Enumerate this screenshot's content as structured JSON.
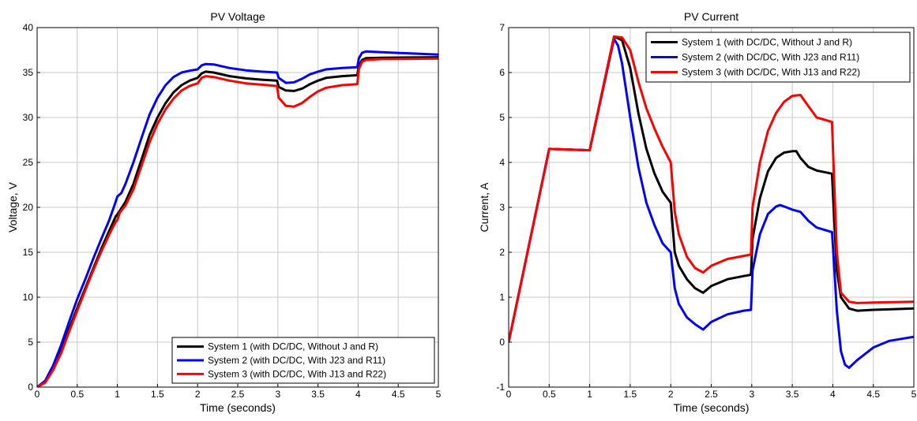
{
  "chart_data": [
    {
      "type": "line",
      "title": "PV Voltage",
      "xlabel": "Time (seconds)",
      "ylabel": "Voltage, V",
      "xlim": [
        0,
        5
      ],
      "ylim": [
        0,
        40
      ],
      "xticks": [
        "0",
        "0.5",
        "1",
        "1.5",
        "2",
        "2.5",
        "3",
        "3.5",
        "4",
        "4.5",
        "5"
      ],
      "yticks": [
        "0",
        "5",
        "10",
        "15",
        "20",
        "25",
        "30",
        "35",
        "40"
      ],
      "grid": true,
      "legend_position": "bottom-right",
      "series": [
        {
          "name": "System 1 (with DC/DC, Without J and R)",
          "color": "#000000",
          "points": [
            [
              0,
              0
            ],
            [
              0.1,
              0.6
            ],
            [
              0.2,
              2.0
            ],
            [
              0.3,
              4.0
            ],
            [
              0.4,
              6.5
            ],
            [
              0.5,
              8.8
            ],
            [
              0.6,
              11.0
            ],
            [
              0.7,
              13.2
            ],
            [
              0.8,
              15.4
            ],
            [
              0.9,
              17.4
            ],
            [
              0.98,
              19.0
            ],
            [
              1.0,
              19.2
            ],
            [
              1.1,
              20.6
            ],
            [
              1.2,
              22.6
            ],
            [
              1.3,
              25.3
            ],
            [
              1.4,
              28.0
            ],
            [
              1.5,
              30.0
            ],
            [
              1.6,
              31.6
            ],
            [
              1.7,
              32.8
            ],
            [
              1.8,
              33.6
            ],
            [
              1.9,
              34.1
            ],
            [
              2.0,
              34.4
            ],
            [
              2.05,
              34.9
            ],
            [
              2.1,
              35.1
            ],
            [
              2.2,
              35.0
            ],
            [
              2.4,
              34.6
            ],
            [
              2.6,
              34.35
            ],
            [
              2.8,
              34.2
            ],
            [
              2.99,
              34.1
            ],
            [
              3.01,
              33.4
            ],
            [
              3.1,
              33.0
            ],
            [
              3.2,
              32.95
            ],
            [
              3.3,
              33.2
            ],
            [
              3.4,
              33.7
            ],
            [
              3.5,
              34.1
            ],
            [
              3.6,
              34.4
            ],
            [
              3.8,
              34.6
            ],
            [
              3.99,
              34.7
            ],
            [
              4.01,
              35.8
            ],
            [
              4.05,
              36.4
            ],
            [
              4.1,
              36.6
            ],
            [
              4.3,
              36.65
            ],
            [
              5,
              36.7
            ]
          ]
        },
        {
          "name": "System 2 (with DC/DC, With J23 and R11)",
          "color": "#0000ff",
          "points": [
            [
              0,
              0
            ],
            [
              0.1,
              0.7
            ],
            [
              0.2,
              2.4
            ],
            [
              0.3,
              4.7
            ],
            [
              0.4,
              7.3
            ],
            [
              0.5,
              9.8
            ],
            [
              0.6,
              12.0
            ],
            [
              0.7,
              14.3
            ],
            [
              0.8,
              16.5
            ],
            [
              0.9,
              18.6
            ],
            [
              0.97,
              20.4
            ],
            [
              1.0,
              21.2
            ],
            [
              1.05,
              21.6
            ],
            [
              1.1,
              22.6
            ],
            [
              1.2,
              25.0
            ],
            [
              1.3,
              27.7
            ],
            [
              1.4,
              30.3
            ],
            [
              1.5,
              32.2
            ],
            [
              1.6,
              33.6
            ],
            [
              1.7,
              34.5
            ],
            [
              1.8,
              35.0
            ],
            [
              1.9,
              35.2
            ],
            [
              2.0,
              35.35
            ],
            [
              2.05,
              35.8
            ],
            [
              2.1,
              35.95
            ],
            [
              2.2,
              35.9
            ],
            [
              2.4,
              35.5
            ],
            [
              2.6,
              35.25
            ],
            [
              2.8,
              35.1
            ],
            [
              2.99,
              35.0
            ],
            [
              3.01,
              34.4
            ],
            [
              3.1,
              33.85
            ],
            [
              3.2,
              33.9
            ],
            [
              3.3,
              34.3
            ],
            [
              3.4,
              34.8
            ],
            [
              3.5,
              35.1
            ],
            [
              3.6,
              35.35
            ],
            [
              3.8,
              35.5
            ],
            [
              3.99,
              35.6
            ],
            [
              4.01,
              36.6
            ],
            [
              4.05,
              37.2
            ],
            [
              4.1,
              37.35
            ],
            [
              4.3,
              37.25
            ],
            [
              5,
              37.0
            ]
          ]
        },
        {
          "name": "System 3 (with DC/DC, With J13 and R22)",
          "color": "#ff0000",
          "points": [
            [
              0,
              0
            ],
            [
              0.1,
              0.5
            ],
            [
              0.2,
              1.9
            ],
            [
              0.3,
              3.8
            ],
            [
              0.4,
              6.2
            ],
            [
              0.5,
              8.5
            ],
            [
              0.6,
              10.8
            ],
            [
              0.7,
              13.0
            ],
            [
              0.8,
              15.1
            ],
            [
              0.9,
              17.0
            ],
            [
              0.98,
              18.4
            ],
            [
              1.0,
              18.6
            ],
            [
              1.03,
              19.4
            ],
            [
              1.1,
              20.2
            ],
            [
              1.2,
              22.0
            ],
            [
              1.3,
              24.6
            ],
            [
              1.4,
              27.2
            ],
            [
              1.5,
              29.3
            ],
            [
              1.6,
              30.9
            ],
            [
              1.7,
              32.1
            ],
            [
              1.8,
              33.0
            ],
            [
              1.9,
              33.5
            ],
            [
              2.0,
              33.8
            ],
            [
              2.05,
              34.4
            ],
            [
              2.1,
              34.6
            ],
            [
              2.2,
              34.5
            ],
            [
              2.4,
              34.1
            ],
            [
              2.6,
              33.8
            ],
            [
              2.8,
              33.65
            ],
            [
              2.99,
              33.5
            ],
            [
              3.01,
              32.2
            ],
            [
              3.1,
              31.3
            ],
            [
              3.2,
              31.2
            ],
            [
              3.3,
              31.6
            ],
            [
              3.4,
              32.3
            ],
            [
              3.5,
              32.9
            ],
            [
              3.6,
              33.3
            ],
            [
              3.8,
              33.6
            ],
            [
              3.99,
              33.7
            ],
            [
              4.01,
              35.4
            ],
            [
              4.05,
              36.2
            ],
            [
              4.1,
              36.4
            ],
            [
              4.3,
              36.5
            ],
            [
              5,
              36.55
            ]
          ]
        }
      ]
    },
    {
      "type": "line",
      "title": "PV Current",
      "xlabel": "Time (seconds)",
      "ylabel": "Current, A",
      "xlim": [
        0,
        5
      ],
      "ylim": [
        -1,
        7
      ],
      "xticks": [
        "0",
        "0.5",
        "1",
        "1.5",
        "2",
        "2.5",
        "3",
        "3.5",
        "4",
        "4.5",
        "5"
      ],
      "yticks": [
        "-1",
        "0",
        "1",
        "2",
        "3",
        "4",
        "5",
        "6",
        "7"
      ],
      "grid": true,
      "legend_position": "top-right",
      "series": [
        {
          "name": "System 1 (with DC/DC, Without J and R)",
          "color": "#000000",
          "points": [
            [
              0,
              0
            ],
            [
              0.5,
              4.3
            ],
            [
              1.0,
              4.27
            ],
            [
              1.3,
              6.8
            ],
            [
              1.4,
              6.72
            ],
            [
              1.5,
              6.1
            ],
            [
              1.6,
              5.1
            ],
            [
              1.7,
              4.3
            ],
            [
              1.8,
              3.75
            ],
            [
              1.9,
              3.35
            ],
            [
              2.0,
              3.1
            ],
            [
              2.05,
              2.0
            ],
            [
              2.1,
              1.7
            ],
            [
              2.2,
              1.4
            ],
            [
              2.3,
              1.2
            ],
            [
              2.4,
              1.1
            ],
            [
              2.5,
              1.25
            ],
            [
              2.7,
              1.4
            ],
            [
              2.9,
              1.47
            ],
            [
              2.99,
              1.5
            ],
            [
              3.01,
              2.3
            ],
            [
              3.1,
              3.2
            ],
            [
              3.2,
              3.8
            ],
            [
              3.3,
              4.1
            ],
            [
              3.4,
              4.22
            ],
            [
              3.5,
              4.25
            ],
            [
              3.55,
              4.25
            ],
            [
              3.6,
              4.1
            ],
            [
              3.7,
              3.9
            ],
            [
              3.8,
              3.82
            ],
            [
              3.99,
              3.75
            ],
            [
              4.01,
              3.0
            ],
            [
              4.05,
              1.6
            ],
            [
              4.1,
              1.0
            ],
            [
              4.2,
              0.75
            ],
            [
              4.3,
              0.7
            ],
            [
              4.5,
              0.72
            ],
            [
              5,
              0.75
            ]
          ]
        },
        {
          "name": "System 2 (with DC/DC, With J23 and R11)",
          "color": "#0000ff",
          "points": [
            [
              0,
              0
            ],
            [
              0.5,
              4.3
            ],
            [
              1.0,
              4.27
            ],
            [
              1.3,
              6.75
            ],
            [
              1.35,
              6.6
            ],
            [
              1.4,
              6.2
            ],
            [
              1.5,
              5.0
            ],
            [
              1.6,
              3.9
            ],
            [
              1.7,
              3.1
            ],
            [
              1.8,
              2.6
            ],
            [
              1.9,
              2.2
            ],
            [
              2.0,
              2.0
            ],
            [
              2.05,
              1.2
            ],
            [
              2.1,
              0.85
            ],
            [
              2.2,
              0.55
            ],
            [
              2.3,
              0.4
            ],
            [
              2.4,
              0.28
            ],
            [
              2.5,
              0.45
            ],
            [
              2.7,
              0.62
            ],
            [
              2.9,
              0.7
            ],
            [
              2.99,
              0.72
            ],
            [
              3.01,
              1.6
            ],
            [
              3.1,
              2.4
            ],
            [
              3.2,
              2.85
            ],
            [
              3.3,
              3.02
            ],
            [
              3.35,
              3.05
            ],
            [
              3.4,
              3.02
            ],
            [
              3.5,
              2.95
            ],
            [
              3.6,
              2.9
            ],
            [
              3.7,
              2.7
            ],
            [
              3.8,
              2.55
            ],
            [
              3.99,
              2.45
            ],
            [
              4.01,
              1.9
            ],
            [
              4.05,
              0.7
            ],
            [
              4.1,
              -0.2
            ],
            [
              4.15,
              -0.5
            ],
            [
              4.2,
              -0.57
            ],
            [
              4.3,
              -0.4
            ],
            [
              4.5,
              -0.12
            ],
            [
              4.7,
              0.03
            ],
            [
              5,
              0.12
            ]
          ]
        },
        {
          "name": "System 3 (with DC/DC, With J13 and R22)",
          "color": "#ff0000",
          "points": [
            [
              0,
              0
            ],
            [
              0.5,
              4.3
            ],
            [
              1.0,
              4.27
            ],
            [
              1.3,
              6.8
            ],
            [
              1.4,
              6.78
            ],
            [
              1.5,
              6.5
            ],
            [
              1.6,
              5.8
            ],
            [
              1.7,
              5.2
            ],
            [
              1.8,
              4.75
            ],
            [
              1.9,
              4.35
            ],
            [
              2.0,
              4.0
            ],
            [
              2.05,
              2.9
            ],
            [
              2.1,
              2.4
            ],
            [
              2.2,
              1.9
            ],
            [
              2.3,
              1.65
            ],
            [
              2.4,
              1.55
            ],
            [
              2.5,
              1.7
            ],
            [
              2.7,
              1.85
            ],
            [
              2.9,
              1.92
            ],
            [
              2.99,
              1.95
            ],
            [
              3.01,
              3.0
            ],
            [
              3.1,
              4.0
            ],
            [
              3.2,
              4.7
            ],
            [
              3.3,
              5.1
            ],
            [
              3.4,
              5.35
            ],
            [
              3.5,
              5.48
            ],
            [
              3.6,
              5.5
            ],
            [
              3.7,
              5.25
            ],
            [
              3.8,
              5.0
            ],
            [
              3.99,
              4.9
            ],
            [
              4.01,
              3.9
            ],
            [
              4.05,
              2.0
            ],
            [
              4.1,
              1.1
            ],
            [
              4.2,
              0.9
            ],
            [
              4.3,
              0.87
            ],
            [
              4.5,
              0.88
            ],
            [
              5,
              0.9
            ]
          ]
        }
      ]
    }
  ]
}
